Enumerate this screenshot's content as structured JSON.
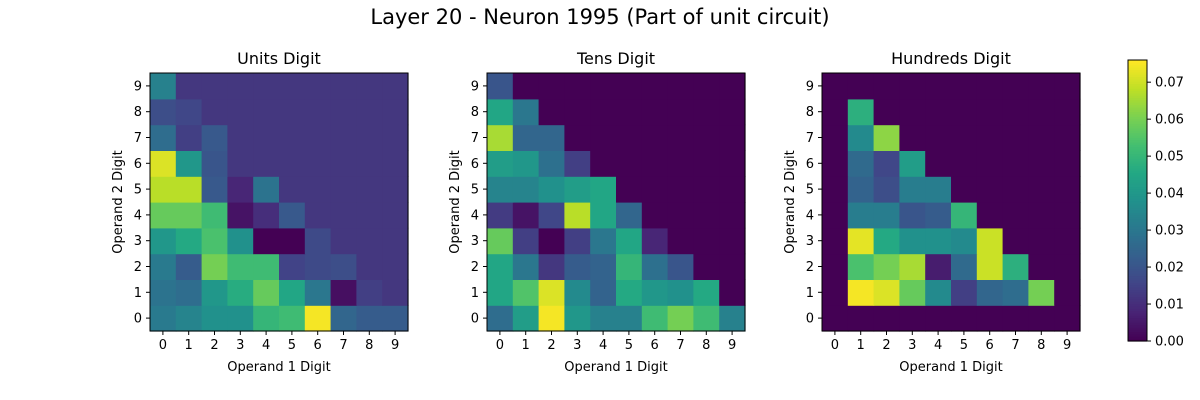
{
  "title": "Layer 20 - Neuron 1995 (Part of unit circuit)",
  "chart_data": [
    {
      "type": "heatmap",
      "title": "Units Digit",
      "xlabel": "Operand 1 Digit",
      "ylabel": "Operand 2 Digit",
      "x": [
        0,
        1,
        2,
        3,
        4,
        5,
        6,
        7,
        8,
        9
      ],
      "y": [
        0,
        1,
        2,
        3,
        4,
        5,
        6,
        7,
        8,
        9
      ],
      "z": [
        [
          0.031,
          0.034,
          0.038,
          0.038,
          0.05,
          0.052,
          0.075,
          0.025,
          0.022,
          0.022
        ],
        [
          0.029,
          0.027,
          0.04,
          0.047,
          0.058,
          0.045,
          0.03,
          0.003,
          0.014,
          0.012
        ],
        [
          0.031,
          0.022,
          0.06,
          0.052,
          0.052,
          0.015,
          0.017,
          0.018,
          0.012,
          0.012
        ],
        [
          0.04,
          0.046,
          0.054,
          0.038,
          0.0,
          0.0,
          0.017,
          0.012,
          0.012,
          0.012
        ],
        [
          0.058,
          0.058,
          0.052,
          0.004,
          0.01,
          0.021,
          0.012,
          0.012,
          0.012,
          0.012
        ],
        [
          0.068,
          0.068,
          0.021,
          0.008,
          0.029,
          0.012,
          0.012,
          0.012,
          0.012,
          0.012
        ],
        [
          0.072,
          0.04,
          0.02,
          0.012,
          0.012,
          0.012,
          0.012,
          0.012,
          0.012,
          0.012
        ],
        [
          0.027,
          0.014,
          0.021,
          0.012,
          0.012,
          0.012,
          0.012,
          0.012,
          0.012,
          0.012
        ],
        [
          0.018,
          0.016,
          0.012,
          0.012,
          0.012,
          0.012,
          0.012,
          0.012,
          0.012,
          0.012
        ],
        [
          0.033,
          0.012,
          0.012,
          0.012,
          0.012,
          0.012,
          0.012,
          0.012,
          0.012,
          0.012
        ]
      ]
    },
    {
      "type": "heatmap",
      "title": "Tens Digit",
      "xlabel": "Operand 1 Digit",
      "ylabel": "Operand 2 Digit",
      "x": [
        0,
        1,
        2,
        3,
        4,
        5,
        6,
        7,
        8,
        9
      ],
      "y": [
        0,
        1,
        2,
        3,
        4,
        5,
        6,
        7,
        8,
        9
      ],
      "z": [
        [
          0.027,
          0.042,
          0.075,
          0.04,
          0.033,
          0.033,
          0.052,
          0.06,
          0.052,
          0.033
        ],
        [
          0.045,
          0.055,
          0.072,
          0.036,
          0.024,
          0.046,
          0.04,
          0.038,
          0.046,
          0.0
        ],
        [
          0.045,
          0.03,
          0.012,
          0.022,
          0.024,
          0.05,
          0.028,
          0.02,
          0.0,
          0.0
        ],
        [
          0.058,
          0.014,
          0.0,
          0.014,
          0.03,
          0.045,
          0.008,
          0.0,
          0.0,
          0.0
        ],
        [
          0.013,
          0.004,
          0.016,
          0.068,
          0.045,
          0.025,
          0.0,
          0.0,
          0.0,
          0.0
        ],
        [
          0.034,
          0.034,
          0.038,
          0.042,
          0.045,
          0.0,
          0.0,
          0.0,
          0.0,
          0.0
        ],
        [
          0.042,
          0.04,
          0.028,
          0.014,
          0.0,
          0.0,
          0.0,
          0.0,
          0.0,
          0.0
        ],
        [
          0.066,
          0.025,
          0.025,
          0.0,
          0.0,
          0.0,
          0.0,
          0.0,
          0.0,
          0.0
        ],
        [
          0.045,
          0.03,
          0.0,
          0.0,
          0.0,
          0.0,
          0.0,
          0.0,
          0.0,
          0.0
        ],
        [
          0.02,
          0.0,
          0.0,
          0.0,
          0.0,
          0.0,
          0.0,
          0.0,
          0.0,
          0.0
        ]
      ]
    },
    {
      "type": "heatmap",
      "title": "Hundreds Digit",
      "xlabel": "Operand 1 Digit",
      "ylabel": "Operand 2 Digit",
      "x": [
        0,
        1,
        2,
        3,
        4,
        5,
        6,
        7,
        8,
        9
      ],
      "y": [
        0,
        1,
        2,
        3,
        4,
        5,
        6,
        7,
        8,
        9
      ],
      "z": [
        [
          0.0,
          0.0,
          0.0,
          0.0,
          0.0,
          0.0,
          0.0,
          0.0,
          0.0,
          0.0
        ],
        [
          0.0,
          0.075,
          0.072,
          0.058,
          0.036,
          0.014,
          0.025,
          0.027,
          0.06,
          0.0
        ],
        [
          0.0,
          0.054,
          0.06,
          0.066,
          0.006,
          0.026,
          0.07,
          0.048,
          0.0,
          0.0
        ],
        [
          0.0,
          0.073,
          0.046,
          0.038,
          0.038,
          0.036,
          0.07,
          0.0,
          0.0,
          0.0
        ],
        [
          0.0,
          0.032,
          0.032,
          0.02,
          0.022,
          0.05,
          0.0,
          0.0,
          0.0,
          0.0
        ],
        [
          0.0,
          0.024,
          0.018,
          0.032,
          0.032,
          0.0,
          0.0,
          0.0,
          0.0,
          0.0
        ],
        [
          0.0,
          0.026,
          0.016,
          0.042,
          0.0,
          0.0,
          0.0,
          0.0,
          0.0,
          0.0
        ],
        [
          0.0,
          0.036,
          0.063,
          0.0,
          0.0,
          0.0,
          0.0,
          0.0,
          0.0,
          0.0
        ],
        [
          0.0,
          0.048,
          0.0,
          0.0,
          0.0,
          0.0,
          0.0,
          0.0,
          0.0,
          0.0
        ],
        [
          0.0,
          0.0,
          0.0,
          0.0,
          0.0,
          0.0,
          0.0,
          0.0,
          0.0,
          0.0
        ]
      ]
    }
  ],
  "colorbar": {
    "colormap": "viridis",
    "range": [
      0.0,
      0.076
    ],
    "ticks": [
      0.0,
      0.01,
      0.02,
      0.03,
      0.04,
      0.05,
      0.06,
      0.07
    ],
    "tick_labels": [
      "0.00",
      "0.01",
      "0.02",
      "0.03",
      "0.04",
      "0.05",
      "0.06",
      "0.07"
    ]
  }
}
